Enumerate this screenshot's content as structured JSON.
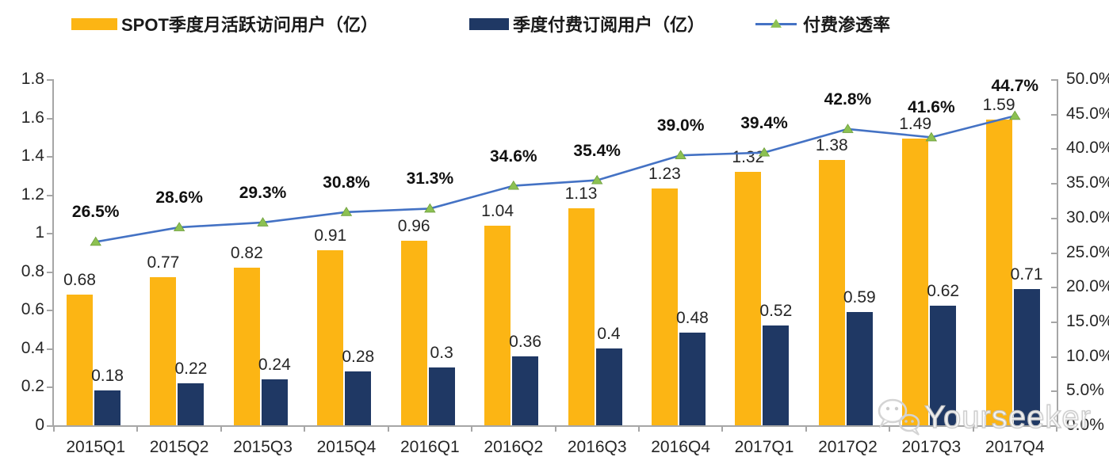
{
  "legend": [
    {
      "label": "SPOT季度月活跃访问用户（亿）",
      "type": "bar",
      "color": "#FCB514"
    },
    {
      "label": "季度付费订阅用户（亿）",
      "type": "bar",
      "color": "#1F3864"
    },
    {
      "label": "付费渗透率",
      "type": "line",
      "color": "#4472C4",
      "marker_color": "#8CC152"
    }
  ],
  "watermark": {
    "text": "Yourseeker",
    "icon": "wechat-icon"
  },
  "chart_data": {
    "type": "combo_bar_line",
    "categories": [
      "2015Q1",
      "2015Q2",
      "2015Q3",
      "2015Q4",
      "2016Q1",
      "2016Q2",
      "2016Q3",
      "2016Q4",
      "2017Q1",
      "2017Q2",
      "2017Q3",
      "2017Q4"
    ],
    "series": [
      {
        "name": "SPOT季度月活跃访问用户（亿）",
        "type": "bar",
        "axis": "left",
        "color": "#FCB514",
        "values": [
          0.68,
          0.77,
          0.82,
          0.91,
          0.96,
          1.04,
          1.13,
          1.23,
          1.32,
          1.38,
          1.49,
          1.59
        ],
        "labels": [
          "0.68",
          "0.77",
          "0.82",
          "0.91",
          "0.96",
          "1.04",
          "1.13",
          "1.23",
          "1.32",
          "1.38",
          "1.49",
          "1.59"
        ]
      },
      {
        "name": "季度付费订阅用户（亿）",
        "type": "bar",
        "axis": "left",
        "color": "#1F3864",
        "values": [
          0.18,
          0.22,
          0.24,
          0.28,
          0.3,
          0.36,
          0.4,
          0.48,
          0.52,
          0.59,
          0.62,
          0.71
        ],
        "labels": [
          "0.18",
          "0.22",
          "0.24",
          "0.28",
          "0.3",
          "0.36",
          "0.4",
          "0.48",
          "0.52",
          "0.59",
          "0.62",
          "0.71"
        ]
      },
      {
        "name": "付费渗透率",
        "type": "line",
        "axis": "right",
        "color": "#4472C4",
        "marker": "triangle",
        "marker_color": "#8CC152",
        "values": [
          26.5,
          28.6,
          29.3,
          30.8,
          31.3,
          34.6,
          35.4,
          39.0,
          39.4,
          42.8,
          41.6,
          44.7
        ],
        "labels": [
          "26.5%",
          "28.6%",
          "29.3%",
          "30.8%",
          "31.3%",
          "34.6%",
          "35.4%",
          "39.0%",
          "39.4%",
          "42.8%",
          "41.6%",
          "44.7%"
        ]
      }
    ],
    "left_axis": {
      "min": 0,
      "max": 1.8,
      "step": 0.2,
      "ticks": [
        "1.8",
        "1.6",
        "1.4",
        "1.2",
        "1",
        "0.8",
        "0.6",
        "0.4",
        "0.2",
        "0"
      ]
    },
    "right_axis": {
      "min": 0,
      "max": 50,
      "step": 5,
      "ticks": [
        "50.0%",
        "45.0%",
        "40.0%",
        "35.0%",
        "30.0%",
        "25.0%",
        "20.0%",
        "15.0%",
        "10.0%",
        "5.0%",
        "0.0%"
      ]
    },
    "grid": false,
    "legend_position": "top",
    "axis_color": "#A6A6A6"
  }
}
